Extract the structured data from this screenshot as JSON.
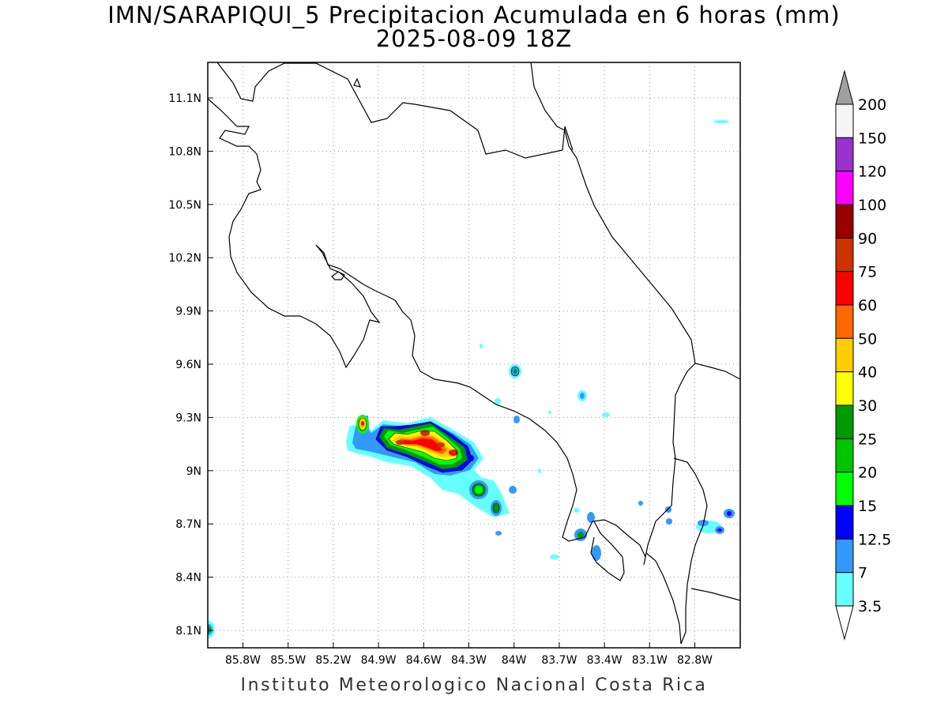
{
  "title_line1": "IMN/SARAPIQUI_5 Precipitacion Acumulada en 6 horas (mm)",
  "title_line2": "2025-08-09 18Z",
  "credit": "Instituto Meteorologico Nacional Costa Rica",
  "lat_labels": [
    "11.1N",
    "10.8N",
    "10.5N",
    "10.2N",
    "9.9N",
    "9.6N",
    "9.3N",
    "9N",
    "8.7N",
    "8.4N",
    "8.1N"
  ],
  "lon_labels": [
    "85.8W",
    "85.5W",
    "85.2W",
    "84.9W",
    "84.6W",
    "84.3W",
    "84W",
    "83.7W",
    "83.4W",
    "83.1W",
    "82.8W"
  ],
  "colorbar": {
    "labels": [
      "200",
      "150",
      "120",
      "100",
      "90",
      "75",
      "60",
      "50",
      "40",
      "30",
      "25",
      "20",
      "15",
      "12.5",
      "7",
      "3.5"
    ],
    "colors": [
      "#f5f5f5",
      "#9932cc",
      "#ff00ff",
      "#990000",
      "#cc3300",
      "#ff0000",
      "#ff6600",
      "#ffcc00",
      "#ffff00",
      "#009900",
      "#00c400",
      "#00ff00",
      "#0000ff",
      "#3399ff",
      "#66ffff"
    ],
    "top_arrow_color": "#a0a0a0",
    "bottom_arrow_color": "#ffffff"
  }
}
